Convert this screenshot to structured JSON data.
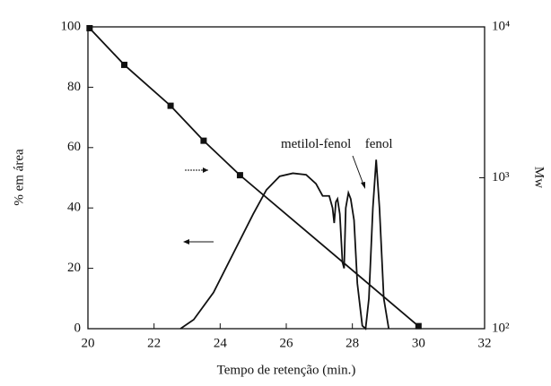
{
  "chart_data": {
    "type": "line",
    "x_label": "Tempo de retenção (min.)",
    "y_label": "% em área",
    "y2_label": "Mw",
    "xlim": [
      20,
      32
    ],
    "xticks": [
      20,
      22,
      24,
      26,
      28,
      30,
      32
    ],
    "ylim": [
      0,
      100
    ],
    "yticks": [
      0,
      20,
      40,
      60,
      80,
      100
    ],
    "y2lim": [
      100,
      10000
    ],
    "y2_log": true,
    "y2ticks": [
      {
        "value": 100,
        "label": "10²"
      },
      {
        "value": 1000,
        "label": "10³"
      },
      {
        "value": 10000,
        "label": "10⁴"
      }
    ],
    "series": [
      {
        "color": "#111111",
        "x": [
          22.8,
          23.2,
          23.8,
          24.4,
          25,
          25.4,
          25.8,
          26.2,
          26.6,
          26.9,
          27.1,
          27.3,
          27.4,
          27.45,
          27.5,
          27.55,
          27.62,
          27.7,
          27.75,
          27.8,
          27.88,
          27.95,
          28.05,
          28.15,
          28.3,
          28.4,
          28.5,
          28.62,
          28.72,
          28.82,
          28.95,
          29.1
        ],
        "values": [
          0,
          3,
          12,
          25,
          38,
          46,
          50.5,
          51.5,
          51,
          48,
          44,
          44,
          40,
          35,
          42,
          43,
          38,
          22,
          20,
          40,
          45,
          43,
          36,
          15,
          1,
          0,
          10,
          40,
          56,
          40,
          10,
          0
        ]
      },
      {
        "color": "#111111",
        "axis": "y2",
        "markers": true,
        "x": [
          20.05,
          21.1,
          22.5,
          23.5,
          24.6,
          30.0
        ],
        "values": [
          9800,
          5600,
          3000,
          1760,
          1040,
          104
        ]
      }
    ],
    "annotations": [
      {
        "text": "metilol-fenol",
        "x": 26.9,
        "y": 61
      },
      {
        "text": "fenol",
        "x": 28.8,
        "y": 61
      }
    ]
  }
}
